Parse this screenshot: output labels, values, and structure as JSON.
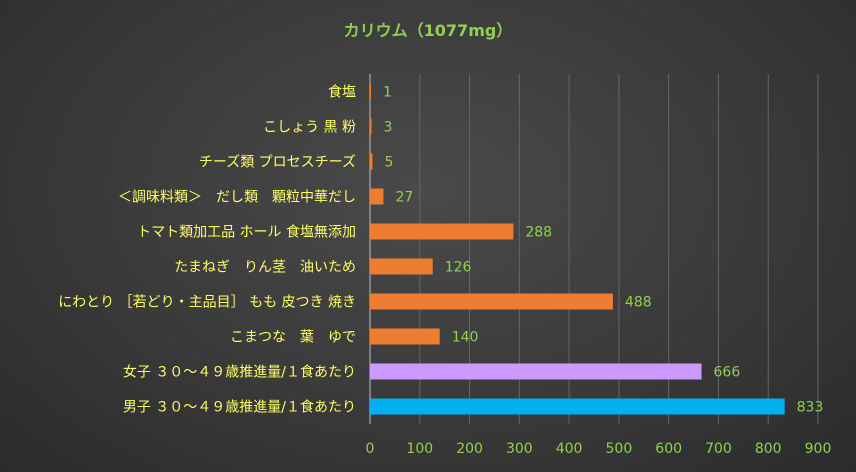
{
  "chart_data": {
    "type": "bar",
    "orientation": "horizontal",
    "title": "カリウム（1077mg）",
    "categories": [
      "食塩",
      "こしょう 黒 粉",
      "チーズ類 プロセスチーズ",
      "＜調味料類＞　だし類　顆粒中華だし",
      "トマト類加工品 ホール 食塩無添加",
      "たまねぎ　りん茎　油いため",
      "にわとり ［若どり・主品目］ もも 皮つき 焼き",
      "こまつな　葉　ゆで",
      "女子 ３０～４９歳推進量/１食あたり",
      "男子 ３０～４９歳推進量/１食あたり"
    ],
    "values": [
      1,
      3,
      5,
      27,
      288,
      126,
      488,
      140,
      666,
      833
    ],
    "value_labels": [
      "1",
      "3",
      "5",
      "27",
      "288",
      "126",
      "488",
      "140",
      "666",
      "833"
    ],
    "bar_colors": [
      "#ed7d31",
      "#ed7d31",
      "#ed7d31",
      "#ed7d31",
      "#ed7d31",
      "#ed7d31",
      "#ed7d31",
      "#ed7d31",
      "#cc99ff",
      "#00b0f0"
    ],
    "xlim": [
      0,
      900
    ],
    "xticks": [
      "0",
      "100",
      "200",
      "300",
      "400",
      "500",
      "600",
      "700",
      "800",
      "900"
    ],
    "xlabel": "",
    "ylabel": "",
    "grid": true,
    "legend": "none"
  }
}
